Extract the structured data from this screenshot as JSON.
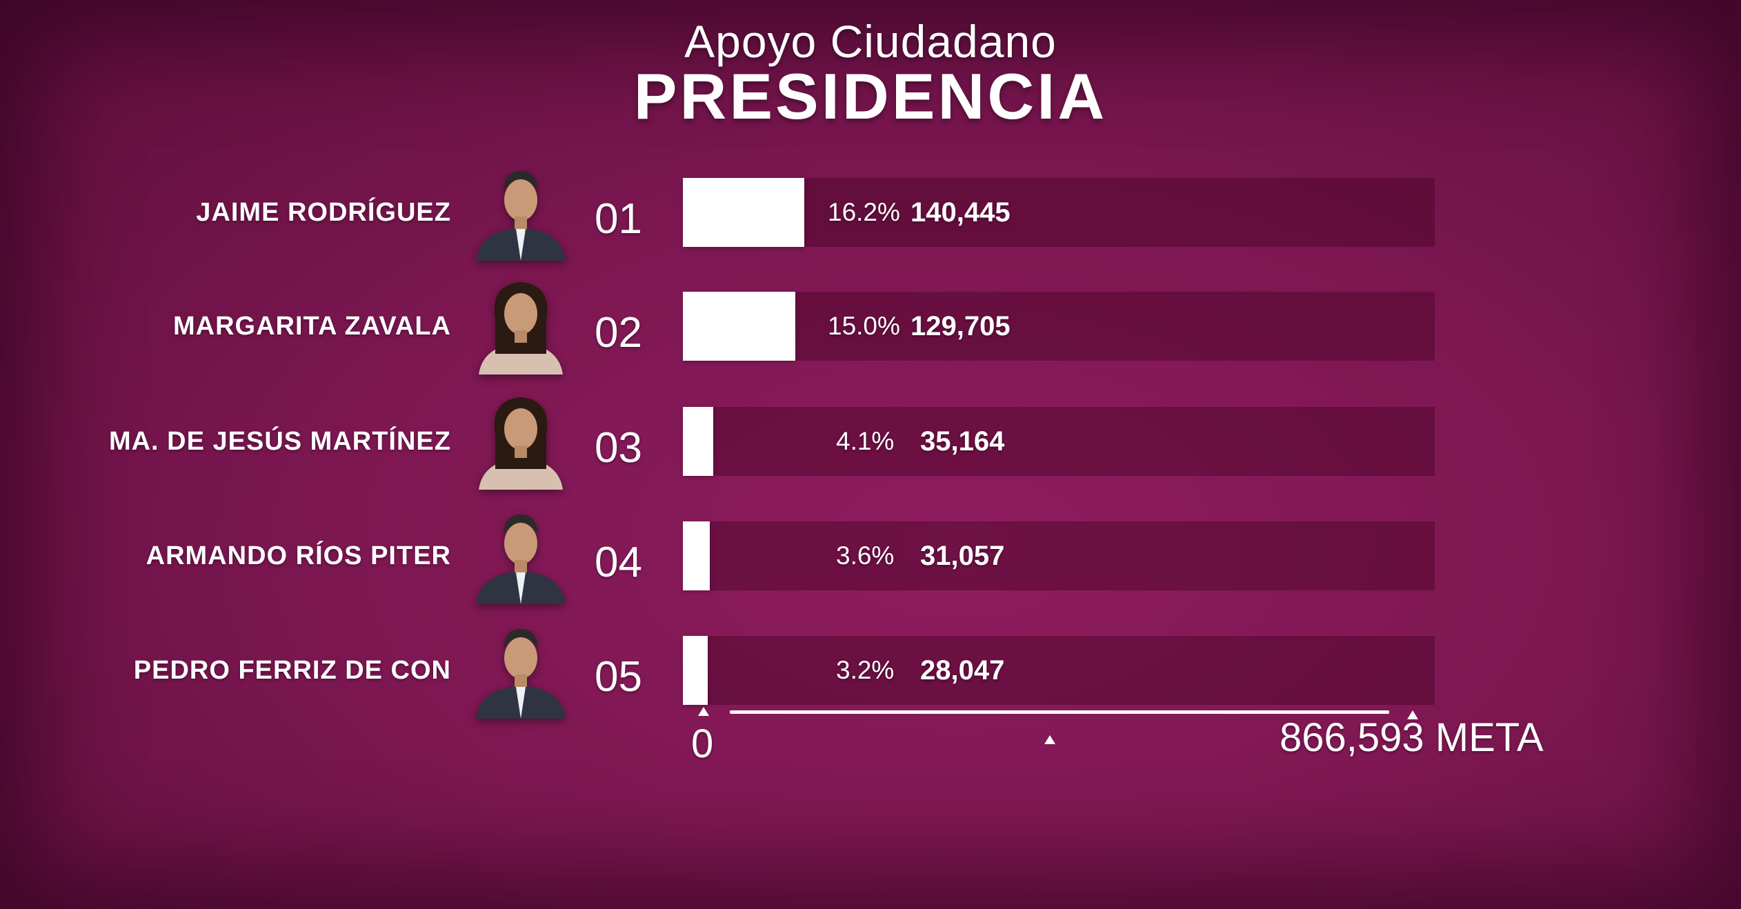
{
  "chart_data": {
    "type": "bar",
    "orientation": "horizontal",
    "subtitle": "Apoyo Ciudadano",
    "title": "PRESIDENCIA",
    "categories": [
      "JAIME RODRÍGUEZ",
      "MARGARITA ZAVALA",
      "MA. DE JESÚS MARTÍNEZ",
      "ARMANDO RÍOS PITER",
      "PEDRO FERRIZ DE CON"
    ],
    "numbers": [
      "01",
      "02",
      "03",
      "04",
      "05"
    ],
    "values": [
      140445,
      129705,
      35164,
      31057,
      28047
    ],
    "value_labels": [
      "140,445",
      "129,705",
      "35,164",
      "31,057",
      "28,047"
    ],
    "percent_labels": [
      "16.2%",
      "15.0%",
      "4.1%",
      "3.6%",
      "3.2%"
    ],
    "xlim": [
      0,
      866593
    ],
    "axis": {
      "min_label": "0",
      "goal_label": "866,593 META"
    },
    "colors": {
      "background": "#7d1752",
      "bar": "#ffffff",
      "track": "#5a0d38"
    },
    "legend": "none",
    "grid": false
  },
  "rows": [
    {
      "photo_icon": "candidate-portrait-man-icon"
    },
    {
      "photo_icon": "candidate-portrait-woman-icon"
    },
    {
      "photo_icon": "candidate-portrait-woman-icon"
    },
    {
      "photo_icon": "candidate-portrait-man-icon"
    },
    {
      "photo_icon": "candidate-portrait-man-icon"
    }
  ]
}
